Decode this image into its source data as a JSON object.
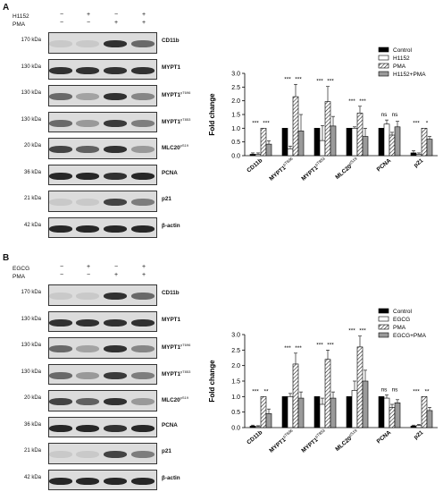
{
  "panels": [
    {
      "letter": "A",
      "treatments": [
        {
          "name": "H1152",
          "signs": [
            "−",
            "+",
            "−",
            "+"
          ]
        },
        {
          "name": "PMA",
          "signs": [
            "−",
            "−",
            "+",
            "+"
          ]
        }
      ],
      "blots": [
        {
          "kda": "170 kDa",
          "protein": "CD11b",
          "sup": ""
        },
        {
          "kda": "130 kDa",
          "protein": "MYPT1",
          "sup": ""
        },
        {
          "kda": "130 kDa",
          "protein": "MYPT1",
          "sup": "pT696"
        },
        {
          "kda": "130 kDa",
          "protein": "MYPT1",
          "sup": "pT853"
        },
        {
          "kda": "20 kDa",
          "protein": "MLC20",
          "sup": "pS19"
        },
        {
          "kda": "36 kDa",
          "protein": "PCNA",
          "sup": ""
        },
        {
          "kda": "21 kDa",
          "protein": "p21",
          "sup": ""
        },
        {
          "kda": "42 kDa",
          "protein": "β-actin",
          "sup": ""
        }
      ]
    },
    {
      "letter": "B",
      "treatments": [
        {
          "name": "EGCG",
          "signs": [
            "−",
            "+",
            "−",
            "+"
          ]
        },
        {
          "name": "PMA",
          "signs": [
            "−",
            "−",
            "+",
            "+"
          ]
        }
      ],
      "blots": [
        {
          "kda": "170 kDa",
          "protein": "CD11b",
          "sup": ""
        },
        {
          "kda": "130 kDa",
          "protein": "MYPT1",
          "sup": ""
        },
        {
          "kda": "130 kDa",
          "protein": "MYPT1",
          "sup": "pT696"
        },
        {
          "kda": "130 kDa",
          "protein": "MYPT1",
          "sup": "pT853"
        },
        {
          "kda": "20 kDa",
          "protein": "MLC20",
          "sup": "pS19"
        },
        {
          "kda": "36 kDa",
          "protein": "PCNA",
          "sup": ""
        },
        {
          "kda": "21 kDa",
          "protein": "p21",
          "sup": ""
        },
        {
          "kda": "42 kDa",
          "protein": "β-actin",
          "sup": ""
        }
      ]
    }
  ],
  "chart_data": [
    {
      "type": "bar",
      "ylabel": "Fold change",
      "ylim": [
        0,
        3.0
      ],
      "yticks": [
        "0.0",
        "0.5",
        "1.0",
        "1.5",
        "2.0",
        "2.5",
        "3.0"
      ],
      "legend_position": "top-right",
      "categories": [
        {
          "label": "CD11b",
          "sup": ""
        },
        {
          "label": "MYPT1",
          "sup": "pT696"
        },
        {
          "label": "MYPT1",
          "sup": "pT853"
        },
        {
          "label": "MLC20",
          "sup": "pS19"
        },
        {
          "label": "PCNA",
          "sup": ""
        },
        {
          "label": "p21",
          "sup": ""
        }
      ],
      "series": [
        {
          "name": "Control",
          "values": [
            0.05,
            1.0,
            1.0,
            1.0,
            1.0,
            0.1
          ]
        },
        {
          "name": "H1152",
          "values": [
            0.05,
            0.25,
            0.55,
            1.0,
            1.15,
            0.05
          ]
        },
        {
          "name": "PMA",
          "values": [
            1.0,
            2.15,
            1.97,
            1.55,
            0.75,
            1.0
          ]
        },
        {
          "name": "H1152+PMA",
          "values": [
            0.42,
            0.9,
            1.08,
            0.7,
            1.05,
            0.6
          ]
        }
      ],
      "errors": [
        [
          0.05,
          0.0,
          0.0,
          0.0,
          0.0,
          0.08
        ],
        [
          0.05,
          0.1,
          0.55,
          0.05,
          0.15,
          0.05
        ],
        [
          0.0,
          0.45,
          0.55,
          0.25,
          0.1,
          0.0
        ],
        [
          0.12,
          0.6,
          0.35,
          0.3,
          0.2,
          0.1
        ]
      ],
      "annotations": [
        {
          "category": 0,
          "left": "***",
          "right": "***"
        },
        {
          "category": 1,
          "left": "***",
          "right": "***"
        },
        {
          "category": 2,
          "left": "***",
          "right": "***"
        },
        {
          "category": 3,
          "left": "***",
          "right": "***"
        },
        {
          "category": 4,
          "left": "ns",
          "right": "ns"
        },
        {
          "category": 5,
          "left": "***",
          "right": "*"
        }
      ]
    },
    {
      "type": "bar",
      "ylabel": "Fold change",
      "ylim": [
        0,
        3.0
      ],
      "yticks": [
        "0.0",
        "0.5",
        "1.0",
        "1.5",
        "2.0",
        "2.5",
        "3.0"
      ],
      "legend_position": "top-right",
      "categories": [
        {
          "label": "CD11b",
          "sup": ""
        },
        {
          "label": "MYPT1",
          "sup": "pT696"
        },
        {
          "label": "MYPT1",
          "sup": "pT853"
        },
        {
          "label": "MLC20",
          "sup": "pS19"
        },
        {
          "label": "PCNA",
          "sup": ""
        },
        {
          "label": "p21",
          "sup": ""
        }
      ],
      "series": [
        {
          "name": "Control",
          "values": [
            0.05,
            1.0,
            1.0,
            1.0,
            1.0,
            0.05
          ]
        },
        {
          "name": "EGCG",
          "values": [
            0.03,
            1.0,
            0.75,
            1.2,
            0.95,
            0.07
          ]
        },
        {
          "name": "PMA",
          "values": [
            1.0,
            2.05,
            2.2,
            2.6,
            0.65,
            1.0
          ]
        },
        {
          "name": "EGCG+PMA",
          "values": [
            0.45,
            0.95,
            0.95,
            1.5,
            0.8,
            0.55
          ]
        }
      ],
      "errors": [
        [
          0.03,
          0.0,
          0.0,
          0.0,
          0.0,
          0.03
        ],
        [
          0.03,
          0.1,
          0.2,
          0.3,
          0.1,
          0.03
        ],
        [
          0.0,
          0.35,
          0.3,
          0.35,
          0.1,
          0.0
        ],
        [
          0.15,
          0.2,
          0.2,
          0.35,
          0.1,
          0.1
        ]
      ],
      "annotations": [
        {
          "category": 0,
          "left": "***",
          "right": "**"
        },
        {
          "category": 1,
          "left": "***",
          "right": "***"
        },
        {
          "category": 2,
          "left": "***",
          "right": "***"
        },
        {
          "category": 3,
          "left": "***",
          "right": "***"
        },
        {
          "category": 4,
          "left": "ns",
          "right": "ns"
        },
        {
          "category": 5,
          "left": "***",
          "right": "**"
        }
      ]
    }
  ]
}
